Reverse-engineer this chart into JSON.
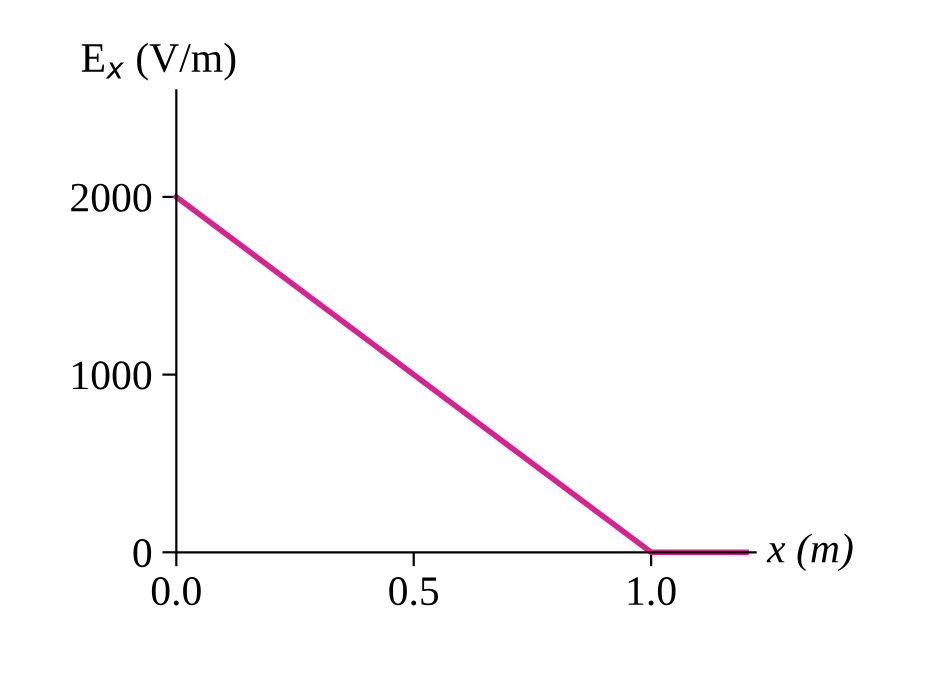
{
  "chart_data": {
    "type": "line",
    "ylabel": "E$_{x}$ (V/m)",
    "xlabel": "x (m)",
    "x": [
      0.0,
      1.0,
      1.2
    ],
    "series": [
      {
        "color": "#d6238f",
        "values": [
          2000,
          0,
          0
        ]
      }
    ],
    "xlim": [
      0,
      1.22
    ],
    "ylim": [
      0,
      2600
    ],
    "xticks": [
      {
        "value": 0,
        "label": "0.0"
      },
      0.5,
      {
        "value": 1,
        "label": "1.0"
      }
    ],
    "yticks": [
      0,
      1000,
      2000
    ],
    "grid": false,
    "legend": false,
    "marker": "none",
    "line_style": "solid"
  }
}
